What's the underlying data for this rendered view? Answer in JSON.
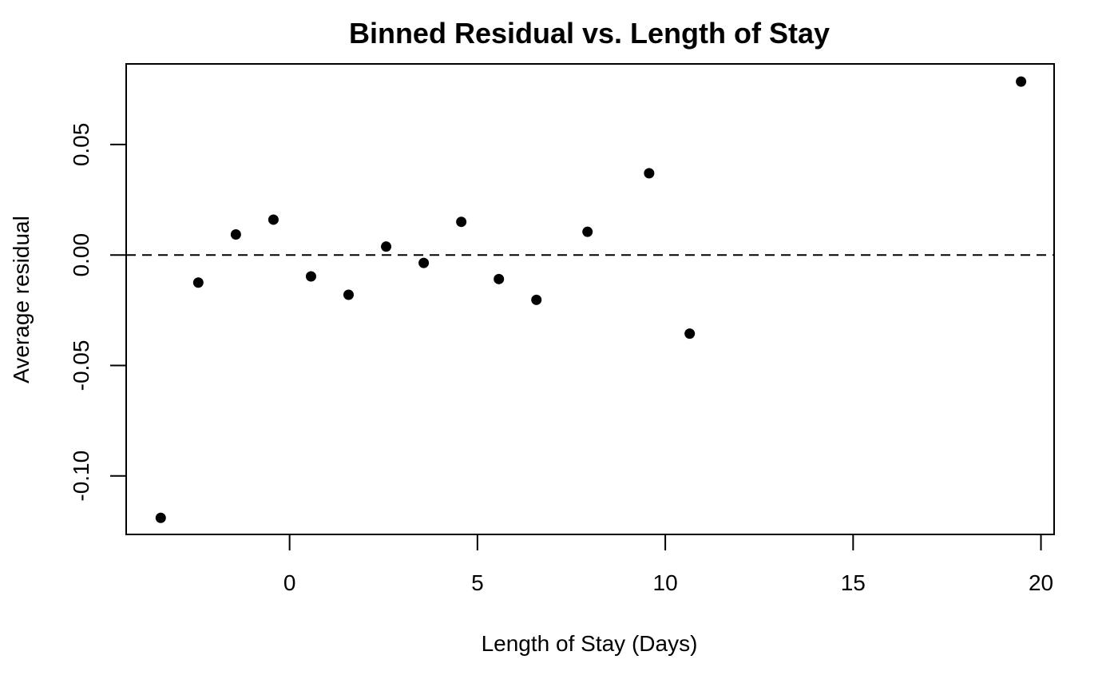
{
  "chart_data": {
    "type": "scatter",
    "title": "Binned Residual vs. Length of Stay",
    "xlabel": "Length of Stay (Days)",
    "ylabel": "Average residual",
    "xlim": [
      -4.35,
      20.35
    ],
    "ylim": [
      -0.1265,
      0.0865
    ],
    "xticks": [
      0,
      5,
      10,
      15,
      20
    ],
    "xtick_labels": [
      "0",
      "5",
      "10",
      "15",
      "20"
    ],
    "yticks": [
      -0.1,
      -0.05,
      0.0,
      0.05
    ],
    "ytick_labels": [
      "-0.10",
      "-0.05",
      "0.00",
      "0.05"
    ],
    "reference_line": {
      "y": 0,
      "style": "dashed"
    },
    "grid": false,
    "marker_color": "#000000",
    "points": [
      {
        "x": -3.43,
        "y": -0.119
      },
      {
        "x": -2.43,
        "y": -0.0125
      },
      {
        "x": -1.43,
        "y": 0.0093
      },
      {
        "x": -0.43,
        "y": 0.016
      },
      {
        "x": 0.57,
        "y": -0.0097
      },
      {
        "x": 1.57,
        "y": -0.018
      },
      {
        "x": 2.57,
        "y": 0.0038
      },
      {
        "x": 3.57,
        "y": -0.0036
      },
      {
        "x": 4.57,
        "y": 0.015
      },
      {
        "x": 5.57,
        "y": -0.0109
      },
      {
        "x": 6.57,
        "y": -0.0203
      },
      {
        "x": 7.93,
        "y": 0.0105
      },
      {
        "x": 9.57,
        "y": 0.037
      },
      {
        "x": 10.65,
        "y": -0.0356
      },
      {
        "x": 19.47,
        "y": 0.0785
      }
    ]
  }
}
